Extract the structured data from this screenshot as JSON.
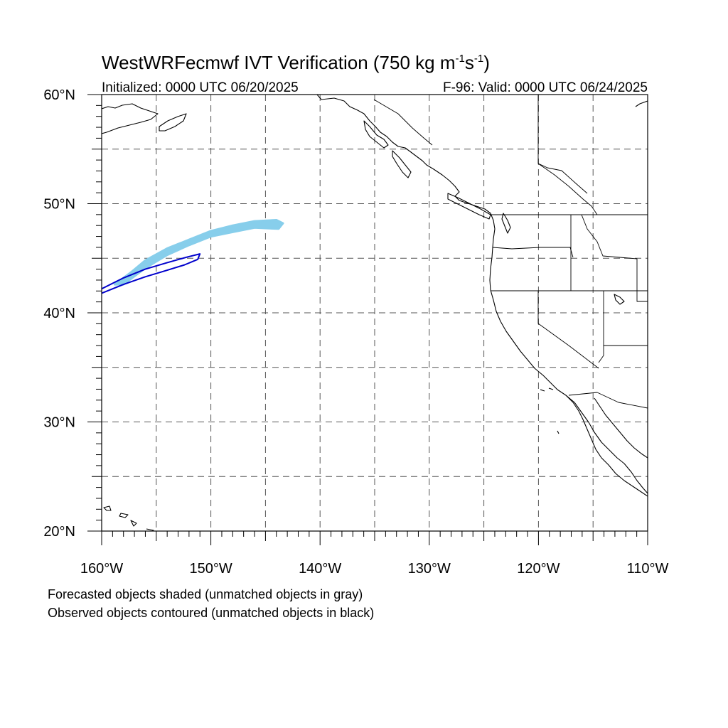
{
  "title": {
    "main": "WestWRFecmwf IVT Verification (750 kg m",
    "exp1": "-1",
    "mid": "s",
    "exp2": "-1",
    "end": ")"
  },
  "subtitle_left": "Initialized: 0000 UTC 06/20/2025",
  "subtitle_right": "F-96: Valid: 0000 UTC 06/24/2025",
  "captions": {
    "forecast": "Forecasted objects shaded (unmatched objects in gray)",
    "observed": "Observed objects contoured (unmatched objects in black)"
  },
  "chart_data": {
    "type": "map",
    "projection": "cylindrical equidistant",
    "lon_range": [
      -160,
      -110
    ],
    "lat_range": [
      20,
      60
    ],
    "grid": true,
    "lat_ticks": [
      20,
      30,
      40,
      50,
      60
    ],
    "lon_ticks": [
      -160,
      -150,
      -140,
      -130,
      -120,
      -110
    ],
    "lat_tick_labels": [
      "20°N",
      "30°N",
      "40°N",
      "50°N",
      "60°N"
    ],
    "lon_tick_labels": [
      "160°W",
      "150°W",
      "140°W",
      "130°W",
      "120°W",
      "110°W"
    ],
    "colors": {
      "forecast_matched": "#87ceeb",
      "observed_matched": "#0000cc"
    },
    "forecast_object": {
      "matched": true,
      "outline": [
        [
          -157.2,
          43.8
        ],
        [
          -156,
          44.8
        ],
        [
          -154,
          45.9
        ],
        [
          -152,
          46.7
        ],
        [
          -150,
          47.5
        ],
        [
          -148,
          48.0
        ],
        [
          -146,
          48.4
        ],
        [
          -144,
          48.5
        ],
        [
          -143.4,
          48.2
        ],
        [
          -143.8,
          47.7
        ],
        [
          -146,
          47.8
        ],
        [
          -148,
          47.4
        ],
        [
          -150,
          47.0
        ],
        [
          -152,
          46.2
        ],
        [
          -154,
          45.3
        ],
        [
          -156,
          44.1
        ],
        [
          -158,
          42.6
        ],
        [
          -158.8,
          42.6
        ]
      ]
    },
    "observed_object": {
      "matched": true,
      "outline": [
        [
          -160,
          42.2
        ],
        [
          -158,
          43.2
        ],
        [
          -156,
          44.0
        ],
        [
          -154,
          44.6
        ],
        [
          -152.2,
          45.1
        ],
        [
          -151,
          45.4
        ],
        [
          -151.2,
          44.9
        ],
        [
          -152.4,
          44.4
        ],
        [
          -154,
          43.9
        ],
        [
          -156,
          43.3
        ],
        [
          -158,
          42.6
        ],
        [
          -160,
          41.8
        ]
      ]
    }
  }
}
